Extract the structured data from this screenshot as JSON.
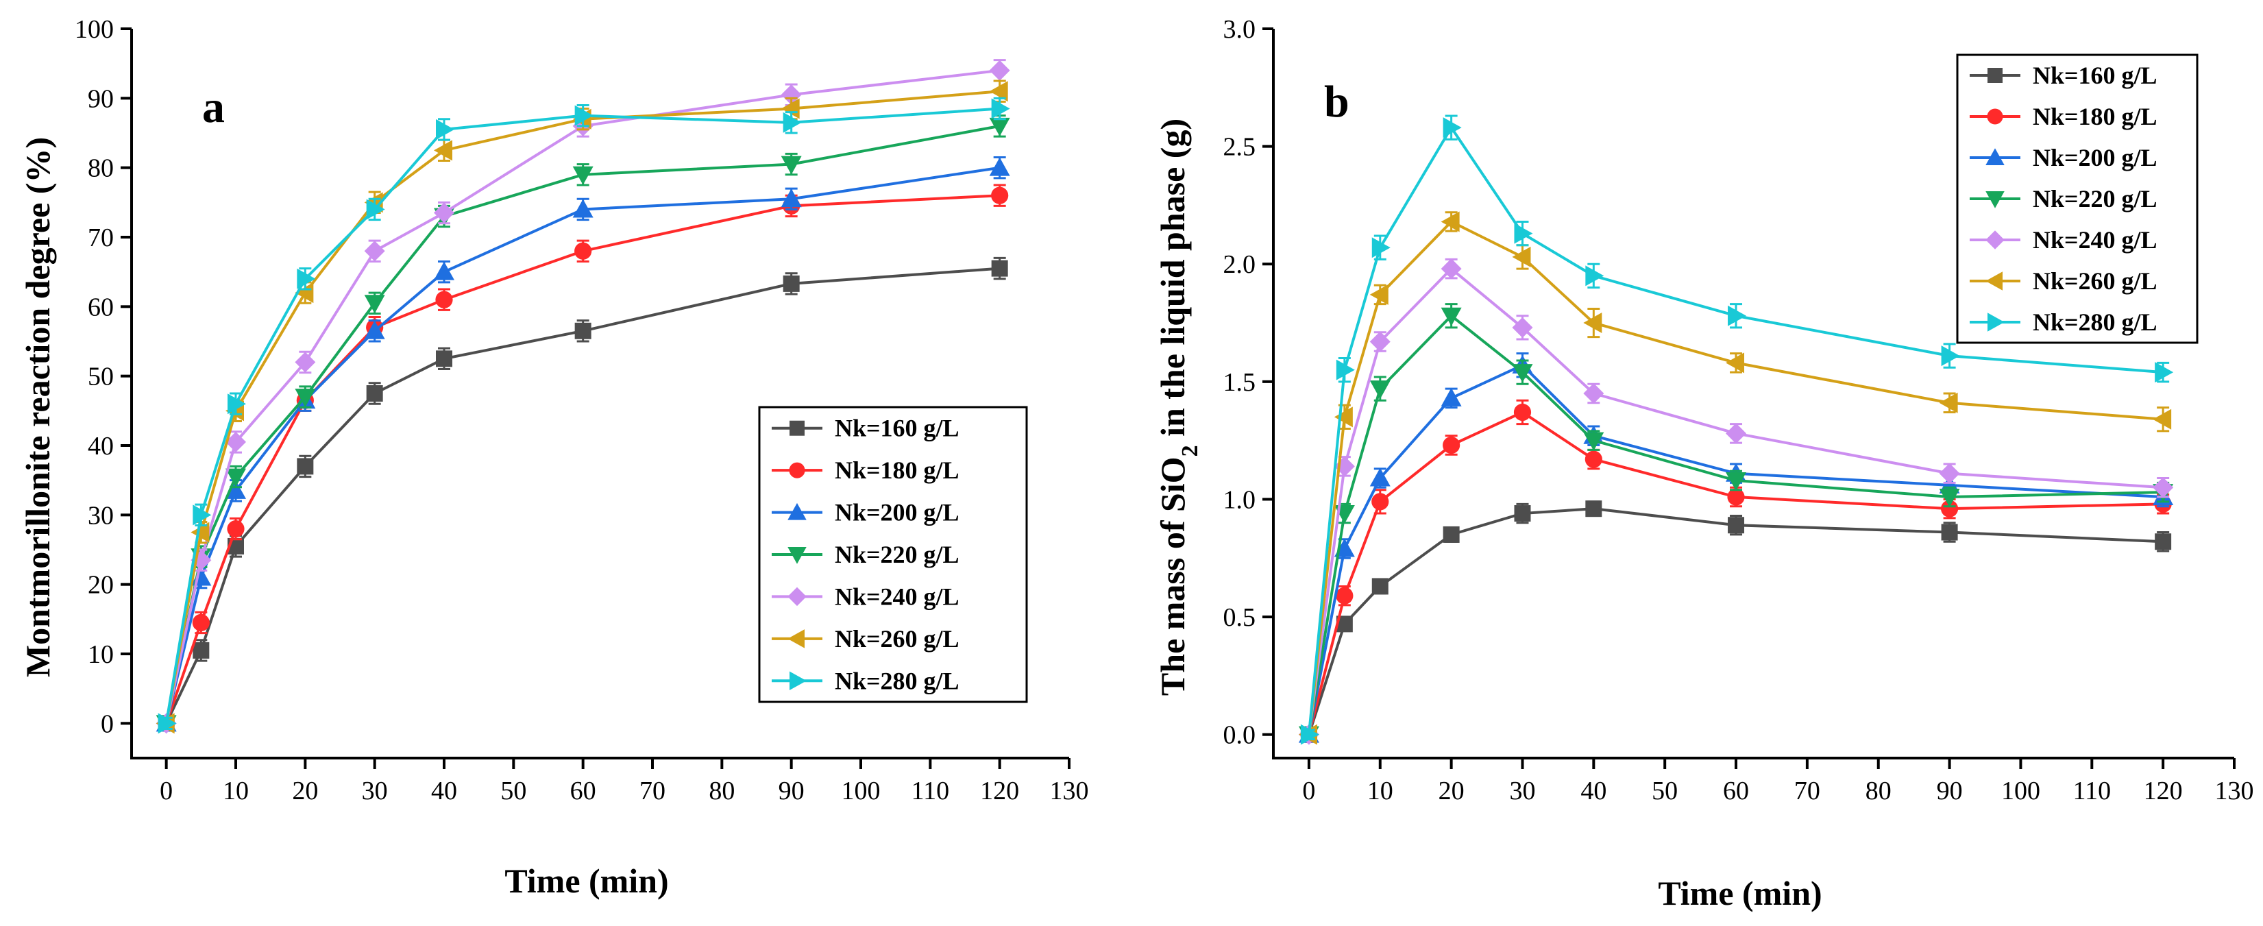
{
  "chart_data": [
    {
      "type": "line",
      "panel_label": "a",
      "xlabel": "Time (min)",
      "ylabel": "Montmorillonite reaction degree (%)",
      "ylabel_parts": [],
      "xlim": [
        -5,
        130
      ],
      "ylim": [
        -5,
        100
      ],
      "xticks": [
        0,
        10,
        20,
        30,
        40,
        50,
        60,
        70,
        80,
        90,
        100,
        110,
        120,
        130
      ],
      "yticks": [
        0,
        10,
        20,
        30,
        40,
        50,
        60,
        70,
        80,
        90,
        100
      ],
      "legend_position": "lower-right",
      "x": [
        0,
        5,
        10,
        20,
        30,
        40,
        60,
        90,
        120
      ],
      "series": [
        {
          "name": "Nk=160 g/L",
          "color": "#4d4d4d",
          "marker": "square",
          "values": [
            0,
            10.5,
            25.5,
            37,
            47.5,
            52.5,
            56.5,
            63.3,
            65.5
          ],
          "err": [
            0.8,
            1.5,
            1.5,
            1.5,
            1.5,
            1.5,
            1.5,
            1.5,
            1.5
          ]
        },
        {
          "name": "Nk=180 g/L",
          "color": "#ff2a2a",
          "marker": "circle",
          "values": [
            0,
            14.5,
            28,
            46.5,
            57,
            61,
            68,
            74.5,
            76
          ],
          "err": [
            0.8,
            1.5,
            1.5,
            1.5,
            1.5,
            1.5,
            1.5,
            1.5,
            1.5
          ]
        },
        {
          "name": "Nk=200 g/L",
          "color": "#1f6fe0",
          "marker": "triangle-up",
          "values": [
            0,
            21,
            33.5,
            46.5,
            56.5,
            65,
            74,
            75.5,
            80
          ],
          "err": [
            0.8,
            1.5,
            1.5,
            1.5,
            1.5,
            1.5,
            1.5,
            1.5,
            1.5
          ]
        },
        {
          "name": "Nk=220 g/L",
          "color": "#17a65a",
          "marker": "triangle-down",
          "values": [
            0,
            24,
            35.5,
            47,
            60.5,
            73,
            79,
            80.5,
            86
          ],
          "err": [
            0.8,
            1.5,
            1.5,
            1.5,
            1.5,
            1.5,
            1.5,
            1.5,
            1.5
          ]
        },
        {
          "name": "Nk=240 g/L",
          "color": "#cc8ef0",
          "marker": "diamond",
          "values": [
            0,
            23.5,
            40.5,
            52,
            68,
            73.5,
            86,
            90.5,
            94
          ],
          "err": [
            0.8,
            1.5,
            1.5,
            1.5,
            1.5,
            1.5,
            1.5,
            1.5,
            1.5
          ]
        },
        {
          "name": "Nk=260 g/L",
          "color": "#d4a017",
          "marker": "triangle-left",
          "values": [
            0,
            27.5,
            45,
            62,
            75,
            82.5,
            87,
            88.5,
            91
          ],
          "err": [
            0.8,
            1.5,
            1.5,
            1.5,
            1.5,
            1.5,
            1.5,
            1.5,
            1.5
          ]
        },
        {
          "name": "Nk=280 g/L",
          "color": "#19c9d6",
          "marker": "triangle-right",
          "values": [
            0,
            30,
            46,
            64,
            74,
            85.5,
            87.5,
            86.5,
            88.5
          ],
          "err": [
            0.8,
            1.5,
            1.5,
            1.5,
            1.5,
            1.5,
            1.5,
            1.5,
            1.5
          ]
        }
      ]
    },
    {
      "type": "line",
      "panel_label": "b",
      "xlabel": "Time (min)",
      "ylabel": "The mass of SiO2 in the liquid phase (g)",
      "ylabel_parts": [
        "The mass of SiO",
        "2",
        " in the liquid phase (g)"
      ],
      "xlim": [
        -5,
        130
      ],
      "ylim": [
        -0.1,
        3.0
      ],
      "xticks": [
        0,
        10,
        20,
        30,
        40,
        50,
        60,
        70,
        80,
        90,
        100,
        110,
        120,
        130
      ],
      "yticks": [
        0.0,
        0.5,
        1.0,
        1.5,
        2.0,
        2.5,
        3.0
      ],
      "ytick_decimals": 1,
      "legend_position": "top-right",
      "x": [
        0,
        5,
        10,
        20,
        30,
        40,
        60,
        90,
        120
      ],
      "series": [
        {
          "name": "Nk=160 g/L",
          "color": "#4d4d4d",
          "marker": "square",
          "values": [
            0,
            0.47,
            0.63,
            0.85,
            0.94,
            0.96,
            0.89,
            0.86,
            0.82
          ],
          "err": [
            0.02,
            0.03,
            0.03,
            0.03,
            0.04,
            0.03,
            0.04,
            0.04,
            0.04
          ]
        },
        {
          "name": "Nk=180 g/L",
          "color": "#ff2a2a",
          "marker": "circle",
          "values": [
            0,
            0.59,
            0.99,
            1.23,
            1.37,
            1.17,
            1.01,
            0.96,
            0.98
          ],
          "err": [
            0.02,
            0.04,
            0.05,
            0.04,
            0.05,
            0.04,
            0.04,
            0.04,
            0.04
          ]
        },
        {
          "name": "Nk=200 g/L",
          "color": "#1f6fe0",
          "marker": "triangle-up",
          "values": [
            0,
            0.79,
            1.09,
            1.43,
            1.57,
            1.27,
            1.11,
            1.06,
            1.01
          ],
          "err": [
            0.02,
            0.04,
            0.04,
            0.04,
            0.05,
            0.04,
            0.04,
            0.04,
            0.04
          ]
        },
        {
          "name": "Nk=220 g/L",
          "color": "#17a65a",
          "marker": "triangle-down",
          "values": [
            0,
            0.94,
            1.47,
            1.78,
            1.54,
            1.25,
            1.08,
            1.01,
            1.03
          ],
          "err": [
            0.02,
            0.04,
            0.05,
            0.05,
            0.05,
            0.04,
            0.04,
            0.04,
            0.04
          ]
        },
        {
          "name": "Nk=240 g/L",
          "color": "#cc8ef0",
          "marker": "diamond",
          "values": [
            0,
            1.14,
            1.67,
            1.98,
            1.73,
            1.45,
            1.28,
            1.11,
            1.05
          ],
          "err": [
            0.02,
            0.04,
            0.04,
            0.04,
            0.05,
            0.04,
            0.04,
            0.04,
            0.04
          ]
        },
        {
          "name": "Nk=260 g/L",
          "color": "#d4a017",
          "marker": "triangle-left",
          "values": [
            0,
            1.35,
            1.87,
            2.18,
            2.03,
            1.75,
            1.58,
            1.41,
            1.34
          ],
          "err": [
            0.02,
            0.05,
            0.04,
            0.04,
            0.05,
            0.06,
            0.04,
            0.04,
            0.05
          ]
        },
        {
          "name": "Nk=280 g/L",
          "color": "#19c9d6",
          "marker": "triangle-right",
          "values": [
            0,
            1.55,
            2.07,
            2.58,
            2.13,
            1.95,
            1.78,
            1.61,
            1.54
          ],
          "err": [
            0.02,
            0.05,
            0.05,
            0.05,
            0.05,
            0.05,
            0.05,
            0.05,
            0.04
          ]
        }
      ]
    }
  ]
}
